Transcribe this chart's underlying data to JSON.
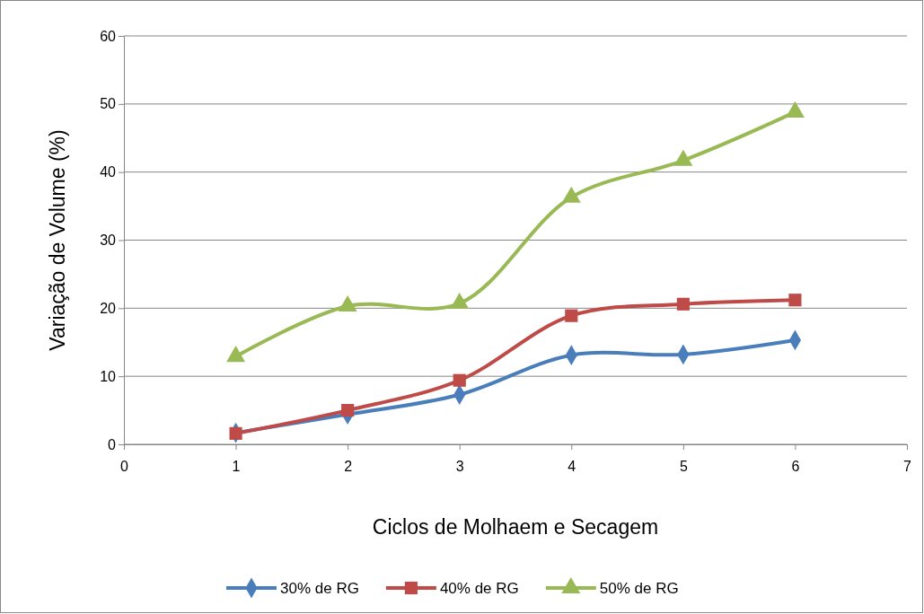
{
  "chart_data": {
    "type": "line",
    "xlabel": "Ciclos de Molhaem e Secagem",
    "ylabel": "Variação de Volume (%)",
    "xlim": [
      0,
      7
    ],
    "xticks": [
      0,
      1,
      2,
      3,
      4,
      5,
      6,
      7
    ],
    "ylim": [
      0,
      60
    ],
    "yticks": [
      0,
      10,
      20,
      30,
      40,
      50,
      60
    ],
    "grid": "y",
    "legend": "bottom",
    "x": [
      1,
      2,
      3,
      4,
      5,
      6
    ],
    "series": [
      {
        "name": "30% de RG",
        "color": "#4a7ebb",
        "marker": "diamond",
        "values": [
          1.7,
          4.4,
          7.3,
          13.1,
          13.2,
          15.3
        ]
      },
      {
        "name": "40% de RG",
        "color": "#be4b48",
        "marker": "square",
        "values": [
          1.6,
          5.0,
          9.4,
          18.9,
          20.6,
          21.2
        ]
      },
      {
        "name": "50% de RG",
        "color": "#98b954",
        "marker": "triangle",
        "values": [
          12.9,
          20.3,
          20.7,
          36.3,
          41.7,
          48.8
        ]
      }
    ]
  }
}
